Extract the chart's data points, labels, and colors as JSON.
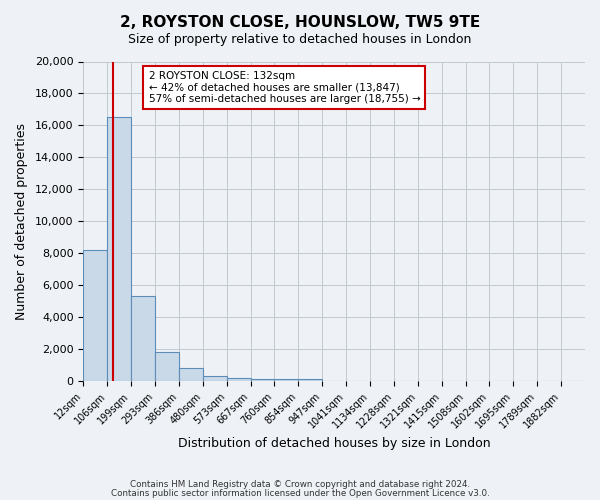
{
  "title": "2, ROYSTON CLOSE, HOUNSLOW, TW5 9TE",
  "subtitle": "Size of property relative to detached houses in London",
  "xlabel": "Distribution of detached houses by size in London",
  "ylabel": "Number of detached properties",
  "bin_labels": [
    "12sqm",
    "106sqm",
    "199sqm",
    "293sqm",
    "386sqm",
    "480sqm",
    "573sqm",
    "667sqm",
    "760sqm",
    "854sqm",
    "947sqm",
    "1041sqm",
    "1134sqm",
    "1228sqm",
    "1321sqm",
    "1415sqm",
    "1508sqm",
    "1602sqm",
    "1695sqm",
    "1789sqm",
    "1882sqm"
  ],
  "bin_values": [
    8200,
    16500,
    5300,
    1800,
    800,
    300,
    200,
    150,
    120,
    100,
    0,
    0,
    0,
    0,
    0,
    0,
    0,
    0,
    0,
    0,
    0
  ],
  "bar_color": "#c9d9e8",
  "bar_edge_color": "#5b8db8",
  "grid_color": "#c0c8d0",
  "background_color": "#eef2f7",
  "vline_x": 1.25,
  "vline_color": "#cc0000",
  "annotation_title": "2 ROYSTON CLOSE: 132sqm",
  "annotation_line1": "← 42% of detached houses are smaller (13,847)",
  "annotation_line2": "57% of semi-detached houses are larger (18,755) →",
  "annotation_box_color": "#ffffff",
  "annotation_box_edge": "#cc0000",
  "ylim": [
    0,
    20000
  ],
  "yticks": [
    0,
    2000,
    4000,
    6000,
    8000,
    10000,
    12000,
    14000,
    16000,
    18000,
    20000
  ],
  "footnote1": "Contains HM Land Registry data © Crown copyright and database right 2024.",
  "footnote2": "Contains public sector information licensed under the Open Government Licence v3.0."
}
